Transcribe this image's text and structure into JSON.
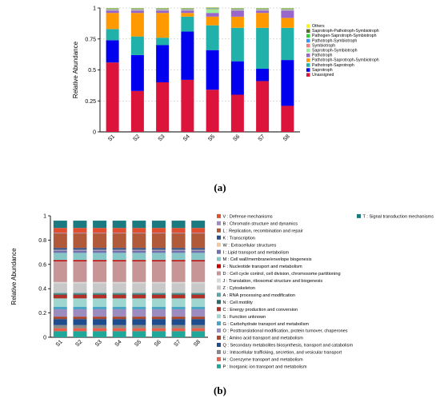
{
  "chart_data": [
    {
      "type": "bar",
      "stacked": true,
      "panel_label": "(a)",
      "ylabel": "Relative Abundance",
      "ylim": [
        0,
        1
      ],
      "yticks": [
        "0",
        "0.25",
        "0.5",
        "0.75",
        "1"
      ],
      "grid": "dashed horizontal",
      "legend_position": "right",
      "categories": [
        "S1",
        "S2",
        "S3",
        "S4",
        "S5",
        "S6",
        "S7",
        "S8"
      ],
      "series": [
        {
          "name": "Unassigned",
          "color": "#dc143c",
          "values": [
            0.56,
            0.33,
            0.4,
            0.42,
            0.34,
            0.3,
            0.41,
            0.21
          ]
        },
        {
          "name": "Saprotroph",
          "color": "#0000ee",
          "values": [
            0.18,
            0.29,
            0.3,
            0.39,
            0.32,
            0.27,
            0.1,
            0.37
          ]
        },
        {
          "name": "Pathotroph-Saprotroph",
          "color": "#20b2aa",
          "values": [
            0.09,
            0.15,
            0.06,
            0.12,
            0.2,
            0.27,
            0.33,
            0.26
          ]
        },
        {
          "name": "Pathotroph-Saprotroph-Symbiotroph",
          "color": "#ff9900",
          "values": [
            0.13,
            0.19,
            0.2,
            0.03,
            0.07,
            0.09,
            0.12,
            0.08
          ]
        },
        {
          "name": "Pathotroph",
          "color": "#9966cc",
          "values": [
            0.02,
            0.02,
            0.02,
            0.02,
            0.03,
            0.05,
            0.02,
            0.06
          ]
        },
        {
          "name": "Saprotroph-Symbiotroph",
          "color": "#99ee99",
          "values": [
            0.005,
            0.005,
            0.005,
            0.005,
            0.03,
            0.005,
            0.005,
            0.005
          ]
        },
        {
          "name": "Symbiotroph",
          "color": "#f08080",
          "values": [
            0.005,
            0.005,
            0.005,
            0.005,
            0.005,
            0.005,
            0.005,
            0.005
          ]
        },
        {
          "name": "Pathotroph-Symbiotroph",
          "color": "#3399ff",
          "values": [
            0.003,
            0.003,
            0.003,
            0.003,
            0.003,
            0.003,
            0.003,
            0.003
          ]
        },
        {
          "name": "Pathogen-Saprotroph-Symbiotroph",
          "color": "#33cc33",
          "values": [
            0.003,
            0.003,
            0.003,
            0.003,
            0.003,
            0.003,
            0.003,
            0.003
          ]
        },
        {
          "name": "Saprotroph-Pathotroph-Symbiotroph",
          "color": "#556b2f",
          "values": [
            0.002,
            0.002,
            0.002,
            0.002,
            0.002,
            0.002,
            0.002,
            0.002
          ]
        },
        {
          "name": "Others",
          "color": "#f5f520",
          "values": [
            0.002,
            0.002,
            0.002,
            0.002,
            0.002,
            0.002,
            0.002,
            0.002
          ]
        }
      ]
    },
    {
      "type": "bar",
      "stacked": true,
      "panel_label": "(b)",
      "ylabel": "Relative Abundance",
      "ylim": [
        0,
        1
      ],
      "yticks": [
        "0",
        "0.2",
        "0.4",
        "0.6",
        "0.8",
        "1"
      ],
      "legend_position": "right",
      "categories": [
        "S1",
        "S2",
        "S3",
        "S4",
        "S5",
        "S6",
        "S7",
        "S8"
      ],
      "series": [
        {
          "name": "P : Inorganic ion transport and metabolism",
          "color": "#1fa89a",
          "values": [
            0.05,
            0.05,
            0.05,
            0.05,
            0.05,
            0.05,
            0.05,
            0.05
          ]
        },
        {
          "name": "H : Coenzyme transport and metabolism",
          "color": "#e8604c",
          "values": [
            0.025,
            0.025,
            0.025,
            0.025,
            0.025,
            0.025,
            0.025,
            0.025
          ]
        },
        {
          "name": "U : Intracellular trafficking, secretion, and vesicular transport",
          "color": "#888888",
          "values": [
            0.025,
            0.025,
            0.025,
            0.025,
            0.025,
            0.025,
            0.025,
            0.025
          ]
        },
        {
          "name": "Q : Secondary metabolites biosynthesis, transport and catabolism",
          "color": "#1e4c8c",
          "values": [
            0.05,
            0.05,
            0.05,
            0.05,
            0.05,
            0.05,
            0.05,
            0.05
          ]
        },
        {
          "name": "E : Amino acid transport and metabolism",
          "color": "#a8452a",
          "values": [
            0.02,
            0.02,
            0.02,
            0.02,
            0.02,
            0.02,
            0.02,
            0.02
          ]
        },
        {
          "name": "O : Posttranslational modification, protein turnover, chaperones",
          "color": "#9b8bbf",
          "values": [
            0.06,
            0.06,
            0.06,
            0.06,
            0.06,
            0.06,
            0.06,
            0.06
          ]
        },
        {
          "name": "G : Carbohydrate transport and metabolism",
          "color": "#4aa5c5",
          "values": [
            0.02,
            0.02,
            0.02,
            0.02,
            0.02,
            0.02,
            0.02,
            0.02
          ]
        },
        {
          "name": "S : Function unknown",
          "color": "#9fd6d0",
          "values": [
            0.07,
            0.07,
            0.07,
            0.07,
            0.07,
            0.07,
            0.07,
            0.07
          ]
        },
        {
          "name": "C : Energy production and conversion",
          "color": "#b03028",
          "values": [
            0.03,
            0.03,
            0.03,
            0.03,
            0.03,
            0.03,
            0.03,
            0.03
          ]
        },
        {
          "name": "N : Cell motility",
          "color": "#2a6b6b",
          "values": [
            0.01,
            0.01,
            0.01,
            0.01,
            0.01,
            0.01,
            0.01,
            0.01
          ]
        },
        {
          "name": "A : RNA processing and modification",
          "color": "#5aa5a5",
          "values": [
            0.005,
            0.005,
            0.005,
            0.005,
            0.005,
            0.005,
            0.005,
            0.005
          ]
        },
        {
          "name": "Z : Cytoskeleton",
          "color": "#c8c8c8",
          "values": [
            0.08,
            0.08,
            0.08,
            0.08,
            0.08,
            0.08,
            0.08,
            0.08
          ]
        },
        {
          "name": "J : Translation, ribosomal structure and biogenesis",
          "color": "#d8d8d8",
          "values": [
            0.01,
            0.01,
            0.01,
            0.01,
            0.01,
            0.01,
            0.01,
            0.01
          ]
        },
        {
          "name": "D : Cell cycle control, cell division, chromosome partitioning",
          "color": "#c79595",
          "values": [
            0.17,
            0.17,
            0.17,
            0.17,
            0.17,
            0.17,
            0.17,
            0.17
          ]
        },
        {
          "name": "F : Nucleotide transport and metabolism",
          "color": "#cc0000",
          "values": [
            0.01,
            0.01,
            0.01,
            0.01,
            0.01,
            0.01,
            0.01,
            0.01
          ]
        },
        {
          "name": "M : Cell wall/membrane/envelope biogenesis",
          "color": "#86c6c6",
          "values": [
            0.06,
            0.06,
            0.06,
            0.06,
            0.06,
            0.06,
            0.06,
            0.06
          ]
        },
        {
          "name": "I : Lipid transport and metabolism",
          "color": "#7070b0",
          "values": [
            0.02,
            0.02,
            0.02,
            0.02,
            0.02,
            0.02,
            0.02,
            0.02
          ]
        },
        {
          "name": "W : Extracellular structures",
          "color": "#f0c8a0",
          "values": [
            0.005,
            0.005,
            0.005,
            0.005,
            0.005,
            0.005,
            0.005,
            0.005
          ]
        },
        {
          "name": "K : Transcription",
          "color": "#2c4f8c",
          "values": [
            0.015,
            0.015,
            0.015,
            0.015,
            0.015,
            0.015,
            0.015,
            0.015
          ]
        },
        {
          "name": "L : Replication, recombination and repair",
          "color": "#b05a3a",
          "values": [
            0.12,
            0.12,
            0.12,
            0.12,
            0.12,
            0.12,
            0.12,
            0.12
          ]
        },
        {
          "name": "B : Chromatin structure and dynamics",
          "color": "#a08cc0",
          "values": [
            0.005,
            0.005,
            0.005,
            0.005,
            0.005,
            0.005,
            0.005,
            0.005
          ]
        },
        {
          "name": "V : Defense mechanisms",
          "color": "#e05030",
          "values": [
            0.04,
            0.04,
            0.04,
            0.04,
            0.04,
            0.04,
            0.04,
            0.04
          ]
        },
        {
          "name": "T : Signal transduction mechanisms",
          "color": "#1b7a80",
          "values": [
            0.06,
            0.06,
            0.06,
            0.06,
            0.06,
            0.06,
            0.06,
            0.06
          ]
        }
      ]
    }
  ]
}
